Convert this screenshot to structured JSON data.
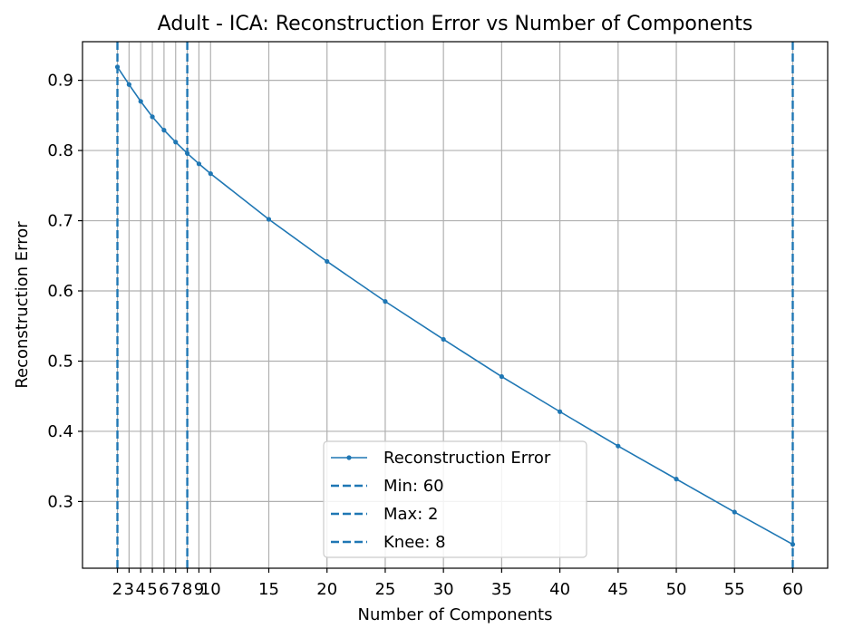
{
  "chart_data": {
    "type": "line",
    "title": "Adult - ICA: Reconstruction Error vs Number of Components",
    "xlabel": "Number of Components",
    "ylabel": "Reconstruction Error",
    "xlim": [
      -1,
      63
    ],
    "ylim": [
      0.205,
      0.955
    ],
    "x_ticks": [
      2,
      3,
      4,
      5,
      6,
      7,
      8,
      9,
      10,
      15,
      20,
      25,
      30,
      35,
      40,
      45,
      50,
      55,
      60
    ],
    "x_tick_labels": [
      "2",
      "3",
      "4",
      "5",
      "6",
      "7",
      "8",
      "9",
      "10",
      "15",
      "20",
      "25",
      "30",
      "35",
      "40",
      "45",
      "50",
      "55",
      "60"
    ],
    "y_ticks": [
      0.3,
      0.4,
      0.5,
      0.6,
      0.7,
      0.8,
      0.9
    ],
    "y_tick_labels": [
      "0.3",
      "0.4",
      "0.5",
      "0.6",
      "0.7",
      "0.8",
      "0.9"
    ],
    "grid": true,
    "legend_position": "bottom-center",
    "series": [
      {
        "name": "Reconstruction Error",
        "style": "line-with-markers",
        "color": "#1f77b4",
        "x": [
          2,
          3,
          4,
          5,
          6,
          7,
          8,
          9,
          10,
          15,
          20,
          25,
          30,
          35,
          40,
          45,
          50,
          55,
          60
        ],
        "y": [
          0.919,
          0.894,
          0.87,
          0.848,
          0.829,
          0.812,
          0.796,
          0.781,
          0.767,
          0.702,
          0.642,
          0.585,
          0.531,
          0.478,
          0.428,
          0.379,
          0.332,
          0.285,
          0.239
        ]
      }
    ],
    "vlines": [
      {
        "name": "Min: 60",
        "x": 60,
        "style": "dashed",
        "color": "#1f77b4"
      },
      {
        "name": "Max: 2",
        "x": 2,
        "style": "dashed",
        "color": "#1f77b4"
      },
      {
        "name": "Knee: 8",
        "x": 8,
        "style": "dashed",
        "color": "#1f77b4"
      }
    ]
  }
}
